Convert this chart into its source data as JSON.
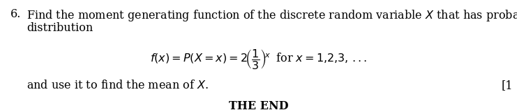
{
  "bg_color": "#ffffff",
  "font_size_body": 11.5,
  "font_size_formula": 11.5,
  "font_size_footer": 11.5
}
